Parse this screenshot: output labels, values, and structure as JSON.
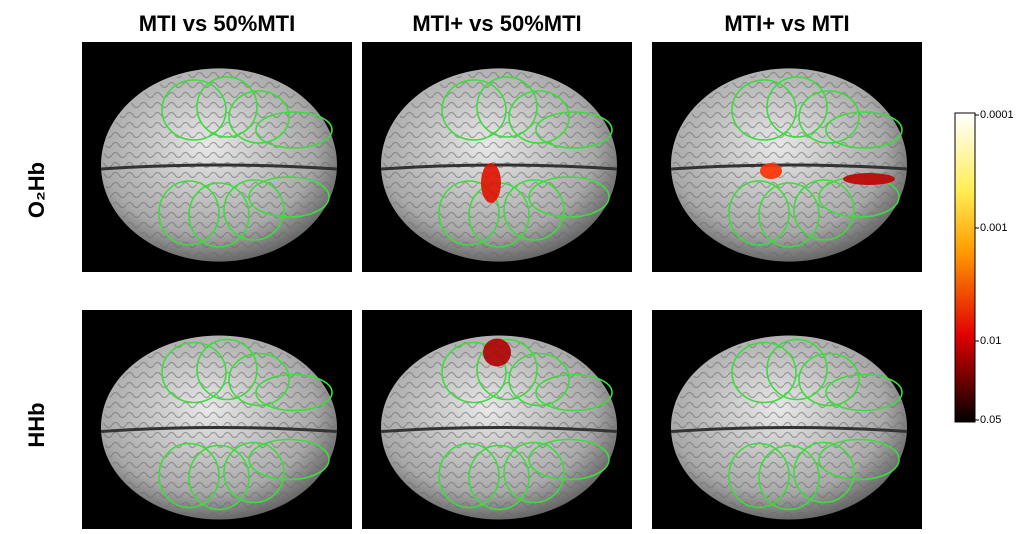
{
  "columns": [
    "MTI vs 50%MTI",
    "MTI+ vs 50%MTI",
    "MTI+ vs MTI"
  ],
  "rows": [
    "O₂Hb",
    "HHb"
  ],
  "colorbar": {
    "scale": "log",
    "lim": [
      0.0001,
      0.05
    ],
    "ticks": [
      0.0001,
      0.001,
      0.01,
      0.05
    ]
  }
}
